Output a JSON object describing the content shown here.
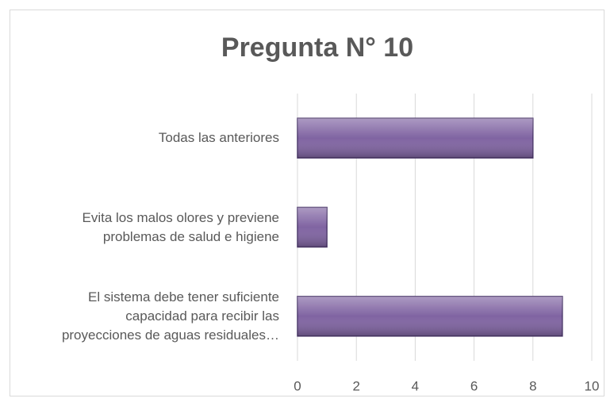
{
  "chart_data": {
    "type": "bar",
    "orientation": "horizontal",
    "title": "Pregunta N° 10",
    "categories": [
      "Todas las anteriores",
      "Evita los malos olores y previene\nproblemas de salud e higiene",
      "El sistema debe tener suficiente\ncapacidad para recibir las\nproyecciones de aguas residuales…"
    ],
    "values": [
      8,
      1,
      9
    ],
    "color": "#8064a2",
    "xlim": [
      0,
      10
    ],
    "xticks": [
      0,
      2,
      4,
      6,
      8,
      10
    ],
    "grid": true
  }
}
